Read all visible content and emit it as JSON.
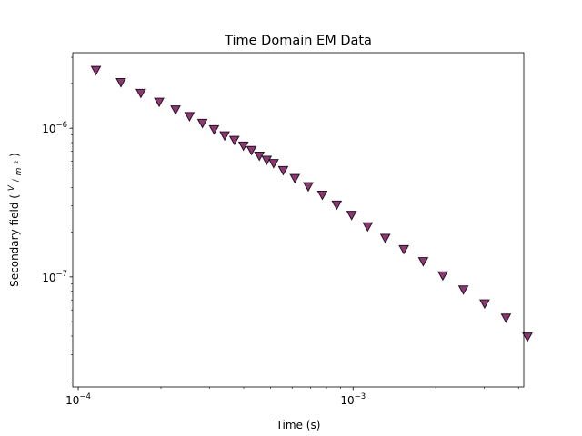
{
  "chart_data": {
    "type": "scatter",
    "title": "Time Domain EM Data",
    "xlabel": "Time (s)",
    "ylabel_prefix": "Secondary field (",
    "ylabel_frac_num": "V",
    "ylabel_frac_den": "m",
    "ylabel_frac_den_sup": "2",
    "ylabel_suffix": ")",
    "x_scale": "log",
    "y_scale": "log",
    "xlim": [
      9.55e-05,
      0.00418
    ],
    "ylim": [
      1.82e-08,
      3.22e-06
    ],
    "grid": false,
    "marker": "triangle-down",
    "marker_color": "#8b3a72",
    "marker_edge_color": "#2a1024",
    "x_major_ticks": [
      {
        "value": 0.0001,
        "base": "10",
        "exp": "−4"
      },
      {
        "value": 0.001,
        "base": "10",
        "exp": "−3"
      }
    ],
    "y_major_ticks": [
      {
        "value": 1e-07,
        "base": "10",
        "exp": "−7"
      },
      {
        "value": 1e-06,
        "base": "10",
        "exp": "−6"
      }
    ],
    "series": [
      {
        "x": [
          0.000116,
          0.000143,
          0.000169,
          0.000197,
          0.000226,
          0.000254,
          0.000283,
          0.000312,
          0.000341,
          0.00037,
          0.000399,
          0.000427,
          0.000456,
          0.000485,
          0.000514,
          0.000557,
          0.000614,
          0.000687,
          0.000773,
          0.000872,
          0.000988,
          0.00113,
          0.00131,
          0.00153,
          0.0018,
          0.00212,
          0.00252,
          0.00301,
          0.0036,
          0.00431
        ],
        "y": [
          2.45e-06,
          2.03e-06,
          1.72e-06,
          1.5e-06,
          1.33e-06,
          1.2e-06,
          1.08e-06,
          9.8e-07,
          8.9e-07,
          8.3e-07,
          7.6e-07,
          7.1e-07,
          6.5e-07,
          6.1e-07,
          5.8e-07,
          5.2e-07,
          4.6e-07,
          4.05e-07,
          3.55e-07,
          3.05e-07,
          2.6e-07,
          2.18e-07,
          1.82e-07,
          1.53e-07,
          1.27e-07,
          1.02e-07,
          8.2e-08,
          6.6e-08,
          5.3e-08,
          3.95e-08
        ]
      }
    ]
  }
}
